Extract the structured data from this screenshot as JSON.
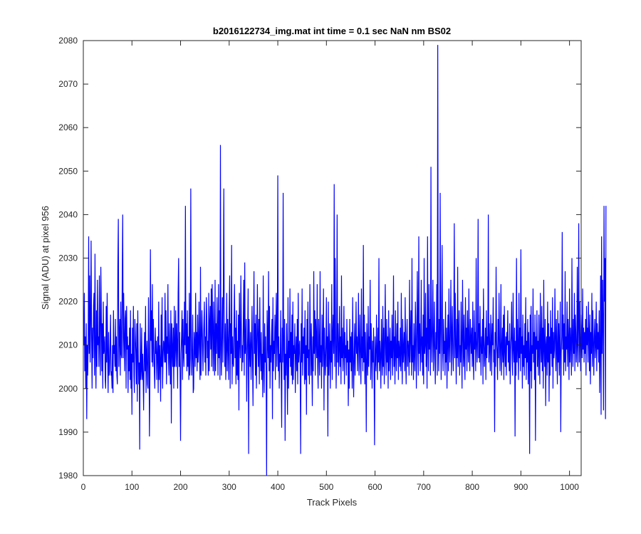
{
  "chart_data": {
    "type": "line",
    "title": "b2016122734_img.mat int time = 0.1 sec  NaN nm BS02",
    "xlabel": "Track Pixels",
    "ylabel": "Signal (ADU) at pixel 956",
    "xlim": [
      0,
      1024
    ],
    "ylim": [
      1980,
      2080
    ],
    "xticks": [
      0,
      100,
      200,
      300,
      400,
      500,
      600,
      700,
      800,
      900,
      1000
    ],
    "yticks": [
      1980,
      1990,
      2000,
      2010,
      2020,
      2030,
      2040,
      2050,
      2060,
      2070,
      2080
    ],
    "grid": false,
    "box": true,
    "series": [
      {
        "color": "#0000ff",
        "x_start": 1,
        "x_step": 1,
        "values": [
          2010,
          2022,
          2004,
          2012,
          2000,
          2015,
          1993,
          2010,
          2003,
          2011,
          2035,
          2008,
          2026,
          2006,
          2015,
          2034,
          2012,
          2000,
          2014,
          2007,
          2019,
          2022,
          2003,
          2031,
          2009,
          2000,
          2018,
          2005,
          2025,
          2010,
          2012,
          2005,
          2026,
          2011,
          2003,
          2028,
          2018,
          2004,
          2015,
          2000,
          2020,
          2008,
          2009,
          2012,
          2002,
          2000,
          2019,
          2006,
          2022,
          2008,
          1999,
          2013,
          2003,
          2004,
          2010,
          2017,
          2003,
          2004,
          2000,
          2010,
          1999,
          2018,
          2008,
          2010,
          2005,
          2016,
          2004,
          2012,
          2003,
          2001,
          2028,
          2039,
          2005,
          2012,
          2016,
          2003,
          2020,
          2008,
          2007,
          2026,
          2040,
          2007,
          2022,
          2012,
          2004,
          2016,
          2018,
          2000,
          2019,
          2009,
          2012,
          1999,
          2010,
          2004,
          2014,
          2002,
          2018,
          2000,
          2008,
          1994,
          2014,
          2006,
          2019,
          2003,
          1999,
          2016,
          2012,
          2008,
          2001,
          2015,
          1997,
          2018,
          2008,
          2001,
          2006,
          1986,
          2015,
          2002,
          2004,
          2014,
          2002,
          2008,
          2003,
          1995,
          2007,
          2013,
          2004,
          2019,
          1999,
          2008,
          2011,
          2001,
          2000,
          2021,
          2010,
          1989,
          2003,
          2032,
          2011,
          2018,
          2006,
          2024,
          2005,
          2016,
          2010,
          2004,
          2000,
          2014,
          2008,
          2011,
          2002,
          2008,
          2012,
          1999,
          2020,
          2002,
          2010,
          2006,
          1997,
          2017,
          2005,
          2021,
          2000,
          2007,
          2011,
          2010,
          2006,
          2022,
          2006,
          2018,
          2001,
          2012,
          2008,
          2024,
          2007,
          2003,
          2015,
          2008,
          2001,
          2018,
          1992,
          2015,
          2009,
          2005,
          2014,
          2000,
          2019,
          2005,
          2009,
          2018,
          2005,
          2015,
          2010,
          2000,
          2022,
          2030,
          2005,
          2013,
          2003,
          1988,
          2008,
          2012,
          2018,
          2002,
          2016,
          2008,
          2005,
          2020,
          2010,
          2042,
          2008,
          2015,
          2004,
          2018,
          2005,
          2012,
          2002,
          2022,
          2003,
          2007,
          2046,
          2012,
          2003,
          2008,
          2017,
          1999,
          2000,
          2013,
          2010,
          2005,
          2022,
          2007,
          2013,
          2004,
          2017,
          2006,
          2010,
          2020,
          2008,
          2002,
          2028,
          2003,
          2011,
          2018,
          2012,
          2004,
          2010,
          2015,
          2020,
          2006,
          2012,
          2003,
          2021,
          2016,
          2007,
          2011,
          2003,
          2022,
          2004,
          2015,
          2019,
          2009,
          2023,
          2005,
          2024,
          2014,
          2004,
          2020,
          2010,
          2003,
          2025,
          2004,
          2015,
          2008,
          2021,
          2012,
          2003,
          2024,
          2007,
          2018,
          2002,
          2056,
          2009,
          2003,
          2013,
          2021,
          2006,
          2024,
          2046,
          2011,
          2005,
          2015,
          2002,
          2009,
          2022,
          2004,
          2016,
          2010,
          2002,
          2018,
          2026,
          2000,
          2015,
          2008,
          2033,
          2001,
          2012,
          2006,
          2005,
          2016,
          2024,
          2007,
          2014,
          2001,
          2018,
          2003,
          2011,
          2002,
          2017,
          1995,
          2022,
          2011,
          2007,
          2026,
          2015,
          2004,
          2010,
          2006,
          2015,
          2025,
          2003,
          2029,
          2008,
          2010,
          2016,
          1997,
          2007,
          2012,
          2023,
          1985,
          2016,
          2009,
          2005,
          2013,
          2002,
          2010,
          2019,
          2006,
          1996,
          2012,
          2027,
          2008,
          2015,
          2003,
          2017,
          2000,
          2009,
          2024,
          2012,
          2005,
          2016,
          2001,
          2021,
          2009,
          2004,
          2013,
          2002,
          2008,
          1998,
          2026,
          2005,
          1999,
          2015,
          2006,
          2012,
          2003,
          1980,
          2018,
          2011,
          2007,
          2027,
          2004,
          2019,
          2000,
          2010,
          2006,
          2012,
          2016,
          1993,
          2021,
          2004,
          2011,
          2008,
          2017,
          2002,
          2014,
          2022,
          2005,
          2010,
          2049,
          2004,
          2012,
          2000,
          2008,
          2006,
          2018,
          2003,
          1991,
          2014,
          2006,
          2045,
          2009,
          2002,
          2016,
          1988,
          2008,
          2003,
          2015,
          2006,
          1994,
          2021,
          2000,
          2011,
          2007,
          2023,
          2005,
          2013,
          2003,
          2017,
          2001,
          2020,
          2002,
          2010,
          2008,
          2015,
          1999,
          2008,
          2012,
          2004,
          2016,
          2001,
          2022,
          2006,
          2009,
          2011,
          2005,
          1985,
          2015,
          2006,
          2023,
          2003,
          2012,
          2008,
          2014,
          2001,
          2018,
          2002,
          2010,
          1994,
          2016,
          2007,
          2020,
          2003,
          2009,
          2001,
          2024,
          2012,
          2003,
          2015,
          2006,
          1996,
          2012,
          2004,
          2027,
          2008,
          2018,
          2003,
          2016,
          2011,
          2007,
          2024,
          2005,
          2000,
          2016,
          2009,
          2003,
          2027,
          2006,
          2010,
          2000,
          2017,
          2005,
          2011,
          2023,
          1995,
          2014,
          2007,
          2003,
          2010,
          2021,
          2005,
          2012,
          1989,
          2020,
          2003,
          2008,
          2015,
          2000,
          2011,
          2006,
          2024,
          2002,
          2012,
          2017,
          2008,
          2047,
          2005,
          2030,
          2012,
          2000,
          2010,
          2040,
          2006,
          2015,
          2003,
          2009,
          2019,
          2005,
          2012,
          2001,
          2026,
          2007,
          2014,
          2004,
          2009,
          2019,
          2001,
          2013,
          2007,
          2010,
          2003,
          2016,
          2006,
          2011,
          1996,
          2009,
          2000,
          2016,
          2006,
          2012,
          2004,
          2013,
          2000,
          2021,
          2008,
          1998,
          2007,
          2015,
          2003,
          2010,
          2020,
          2008,
          2012,
          2004,
          2011,
          2022,
          2003,
          2009,
          2017,
          2005,
          2001,
          2023,
          2007,
          2012,
          2004,
          2033,
          2006,
          2017,
          2001,
          2013,
          2006,
          1990,
          2015,
          2008,
          2003,
          2019,
          2005,
          2012,
          2009,
          2025,
          2002,
          2015,
          2008,
          2000,
          2011,
          2006,
          2014,
          2003,
          1987,
          2012,
          2007,
          2004,
          2017,
          2009,
          2002,
          2014,
          2006,
          2030,
          2004,
          2011,
          2007,
          2000,
          2016,
          2008,
          2003,
          2019,
          2005,
          2014,
          2001,
          2010,
          2024,
          2008,
          2003,
          2016,
          2006,
          2012,
          2000,
          2018,
          2004,
          2009,
          2014,
          2002,
          2011,
          2007,
          2017,
          2003,
          2009,
          2026,
          2005,
          2012,
          2001,
          2018,
          2008,
          2004,
          2015,
          2007,
          2020,
          2002,
          2011,
          2009,
          2005,
          2014,
          2004,
          2022,
          2008,
          2001,
          2016,
          2006,
          2009,
          2013,
          2004,
          2021,
          2007,
          2001,
          2012,
          2016,
          2005,
          2011,
          2009,
          2003,
          2025,
          2006,
          2012,
          2018,
          2003,
          2030,
          2006,
          2010,
          2002,
          2015,
          2008,
          2004,
          2020,
          2012,
          2000,
          2014,
          2027,
          2009,
          2003,
          2035,
          2008,
          2015,
          2004,
          2010,
          2025,
          2006,
          2012,
          2003,
          2017,
          2001,
          2030,
          2008,
          2010,
          2022,
          2005,
          2014,
          2000,
          2035,
          2011,
          2004,
          2024,
          2009,
          2016,
          2003,
          2051,
          2012,
          2006,
          2015,
          2025,
          2004,
          2010,
          2020,
          2007,
          2001,
          2013,
          2009,
          2024,
          2003,
          2079,
          2012,
          2004,
          2016,
          2008,
          2045,
          2013,
          2002,
          2018,
          2033,
          2009,
          2004,
          2016,
          2008,
          2011,
          2003,
          2020,
          2006,
          2014,
          2000,
          2011,
          2017,
          2004,
          2023,
          2010,
          2006,
          2015,
          2025,
          2003,
          2012,
          2019,
          2008,
          2004,
          2014,
          2038,
          2007,
          2022,
          2010,
          2001,
          2016,
          2007,
          2028,
          2005,
          2012,
          2018,
          2003,
          2010,
          2006,
          2020,
          2009,
          2000,
          2025,
          2013,
          2005,
          2017,
          2007,
          2002,
          2021,
          2009,
          2014,
          2004,
          2018,
          2011,
          2006,
          2023,
          2010,
          2004,
          2016,
          2012,
          2008,
          2014,
          2005,
          2020,
          2007,
          2002,
          2018,
          2009,
          2013,
          2004,
          2030,
          2010,
          2006,
          2012,
          2039,
          2007,
          2015,
          2006,
          2019,
          2010,
          2003,
          2012,
          2008,
          2016,
          2001,
          2023,
          2011,
          2005,
          2009,
          2014,
          2002,
          2018,
          2007,
          2012,
          2010,
          2040,
          2006,
          2015,
          2009,
          2004,
          2017,
          2012,
          2003,
          2015,
          2010,
          2021,
          2006,
          2009,
          1990,
          2013,
          2005,
          2028,
          2011,
          2008,
          2002,
          2016,
          2007,
          2022,
          2012,
          2004,
          2010,
          2024,
          2003,
          2008,
          2014,
          2006,
          2017,
          2002,
          2019,
          2009,
          2005,
          2012,
          2003,
          2013,
          2010,
          2018,
          2006,
          2011,
          2004,
          2015,
          2001,
          2009,
          2012,
          2020,
          2007,
          2003,
          2022,
          2009,
          2006,
          2014,
          1989,
          2011,
          2003,
          2030,
          2006,
          2016,
          2009,
          2002,
          2022,
          2007,
          2014,
          2004,
          2032,
          2008,
          2012,
          2000,
          2017,
          2005,
          2010,
          2003,
          2015,
          2007,
          2021,
          2002,
          2011,
          2006,
          2016,
          2001,
          2013,
          2008,
          1985,
          2017,
          2004,
          2019,
          2000,
          2010,
          2008,
          2023,
          2006,
          2013,
          2002,
          2017,
          1988,
          2012,
          2009,
          2018,
          2005,
          2011,
          2003,
          2017,
          2008,
          2001,
          2022,
          2010,
          2006,
          2019,
          2004,
          2014,
          2000,
          2025,
          2009,
          2005,
          2016,
          1996,
          2010,
          2012,
          2003,
          2020,
          2006,
          2015,
          1997,
          2012,
          2003,
          2018,
          2008,
          2014,
          2005,
          2021,
          2000,
          2013,
          2007,
          2009,
          2023,
          2011,
          2004,
          2016,
          2009,
          2001,
          2018,
          2006,
          2015,
          2003,
          2011,
          2020,
          1990,
          2008,
          2012,
          2036,
          2009,
          2017,
          2003,
          2015,
          2006,
          2027,
          2004,
          2012,
          2009,
          2020,
          2005,
          2016,
          2011,
          2002,
          2023,
          2006,
          2014,
          2010,
          2003,
          2030,
          2011,
          2005,
          2016,
          2008,
          2022,
          2004,
          2017,
          2013,
          2006,
          2010,
          2028,
          2005,
          2014,
          2038,
          2006,
          2020,
          2010,
          2004,
          2017,
          2012,
          2007,
          2023,
          2009,
          2014,
          2006,
          2013,
          2008,
          2016,
          2003,
          2019,
          2010,
          2014,
          2006,
          2020,
          2012,
          2004,
          2017,
          2001,
          2013,
          2008,
          2022,
          2005,
          2018,
          2011,
          2003,
          2012,
          2016,
          2007,
          2010,
          2020,
          2004,
          2015,
          2009,
          2013,
          2006,
          2018,
          1999,
          2010,
          2026,
          1994,
          2035,
          2008,
          2025,
          2014,
          1995,
          2042,
          2020,
          2030,
          1993,
          2042
        ]
      }
    ]
  }
}
